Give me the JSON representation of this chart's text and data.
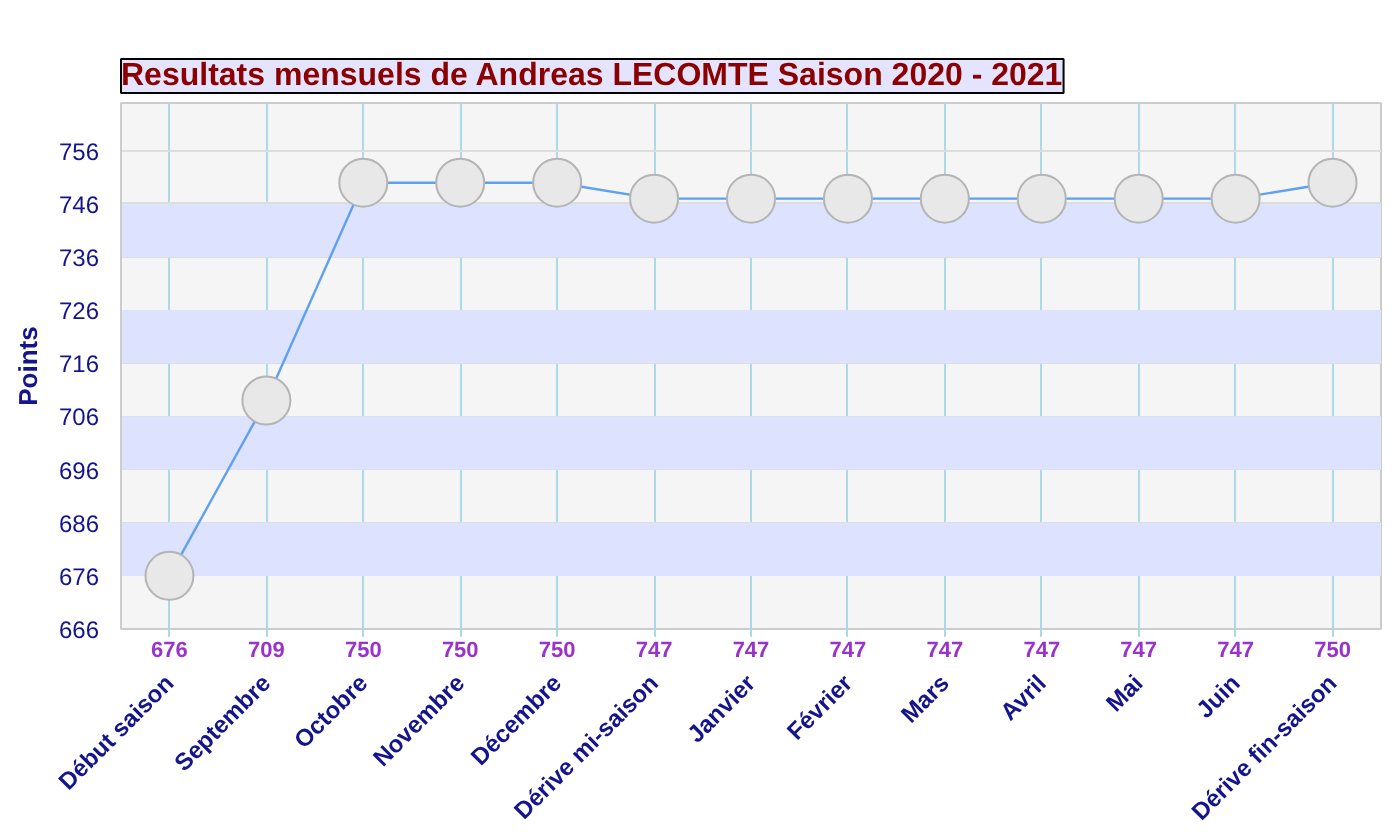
{
  "chart_data": {
    "type": "line",
    "title": "Resultats mensuels de Andreas LECOMTE Saison 2020 - 2021",
    "ylabel": "Points",
    "categories": [
      "Début saison",
      "Septembre",
      "Octobre",
      "Novembre",
      "Décembre",
      "Dérive mi-saison",
      "Janvier",
      "Février",
      "Mars",
      "Avril",
      "Mai",
      "Juin",
      "Dérive fin-saison"
    ],
    "series": [
      {
        "color": "#5fa0f0",
        "values": [
          676,
          709,
          750,
          750,
          750,
          747,
          747,
          747,
          747,
          747,
          747,
          747,
          750
        ]
      }
    ],
    "ylim": [
      666,
      765
    ],
    "yticks": [
      666,
      676,
      686,
      696,
      706,
      716,
      726,
      736,
      746,
      756
    ],
    "grid": true,
    "marker": "circle",
    "data_labels": true
  }
}
